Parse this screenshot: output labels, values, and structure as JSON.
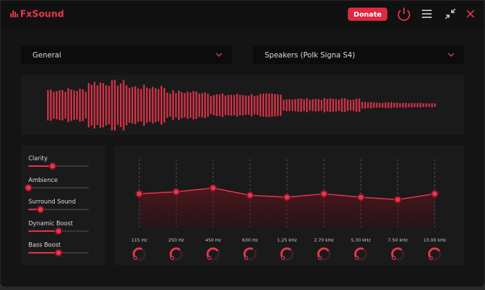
{
  "header": {
    "logo": "FxSound",
    "donate": "Donate"
  },
  "preset": "General",
  "output_device": "Speakers (Polk Signa S4)",
  "effects": {
    "range": [
      0,
      10
    ],
    "items": [
      {
        "label": "Clarity",
        "value": 4
      },
      {
        "label": "Ambience",
        "value": 0
      },
      {
        "label": "Surround Sound",
        "value": 2
      },
      {
        "label": "Dynamic Boost",
        "value": 5
      },
      {
        "label": "Bass Boost",
        "value": 5
      }
    ]
  },
  "eq": {
    "range": [
      -12,
      12
    ],
    "bands": [
      {
        "freq": "115 Hz",
        "gain": 0
      },
      {
        "freq": "250 Hz",
        "gain": 0.7
      },
      {
        "freq": "450 Hz",
        "gain": 2
      },
      {
        "freq": "630 Hz",
        "gain": -0.5
      },
      {
        "freq": "1.25 kHz",
        "gain": -1.2
      },
      {
        "freq": "2.70 kHz",
        "gain": 0
      },
      {
        "freq": "5.30 kHz",
        "gain": -1.2
      },
      {
        "freq": "7.50 kHz",
        "gain": -2
      },
      {
        "freq": "13.00 kHz",
        "gain": 0
      }
    ]
  }
}
